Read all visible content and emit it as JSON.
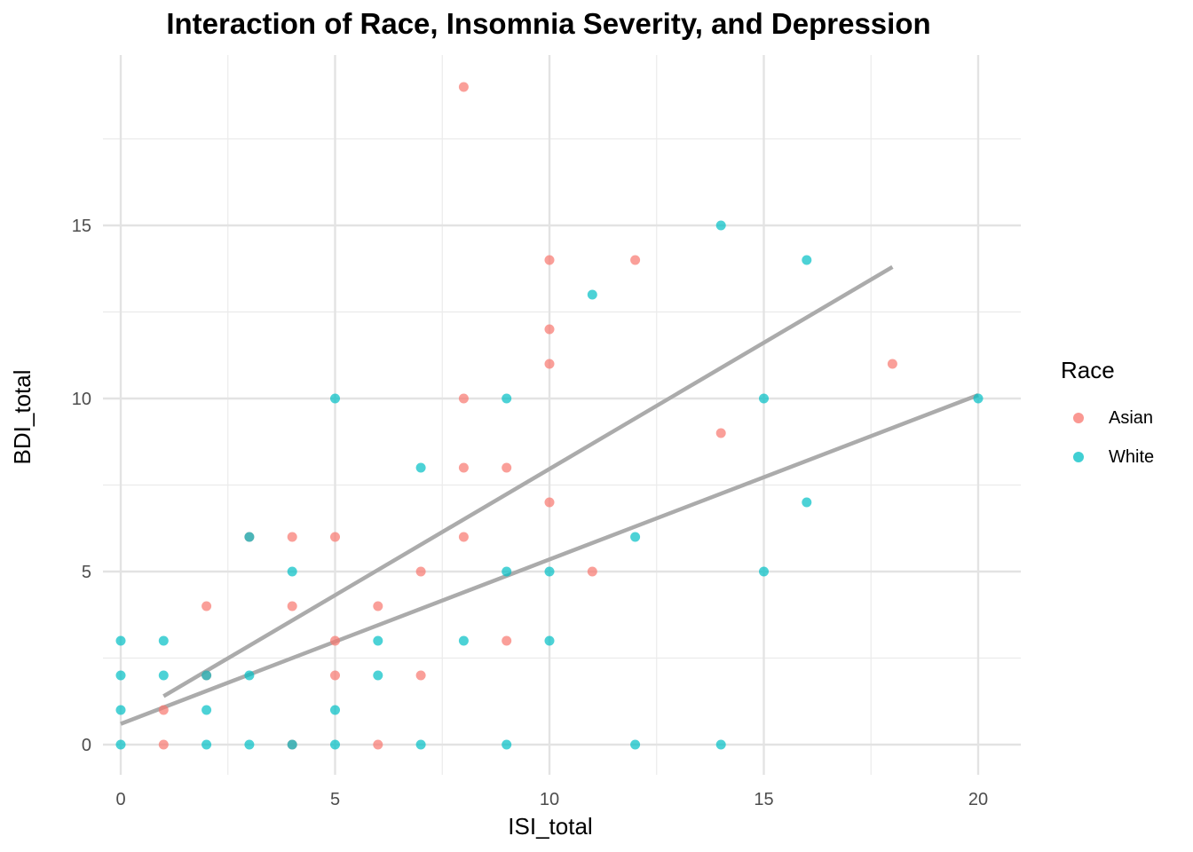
{
  "chart_data": {
    "type": "scatter",
    "title": "Interaction of Race, Insomnia Severity, and Depression",
    "xlabel": "ISI_total",
    "ylabel": "BDI_total",
    "xlim": [
      -0.8,
      21
    ],
    "ylim": [
      -0.8,
      19.5
    ],
    "xticks": [
      0,
      5,
      10,
      15,
      20
    ],
    "yticks": [
      0,
      5,
      10,
      15
    ],
    "grid": true,
    "legend": {
      "title": "Race",
      "placement": "right"
    },
    "series": [
      {
        "name": "Asian",
        "color": "#F8766D",
        "x": [
          8,
          10,
          12,
          10,
          10,
          18,
          8,
          14,
          8,
          9,
          10,
          3,
          4,
          5,
          8,
          7,
          11,
          2,
          4,
          6,
          5,
          9,
          2,
          7,
          5,
          1,
          1,
          4,
          6
        ],
        "y": [
          19,
          14,
          14,
          12,
          11,
          11,
          10,
          9,
          8,
          8,
          7,
          6,
          6,
          6,
          6,
          5,
          5,
          4,
          4,
          4,
          3,
          3,
          2,
          2,
          2,
          1,
          0,
          0,
          0
        ],
        "fit": {
          "x": [
            1,
            18
          ],
          "y": [
            1.4,
            13.8
          ]
        }
      },
      {
        "name": "White",
        "color": "#00BFC4",
        "x": [
          14,
          16,
          11,
          5,
          9,
          15,
          20,
          7,
          16,
          3,
          12,
          4,
          9,
          10,
          15,
          0,
          1,
          6,
          8,
          10,
          0,
          1,
          2,
          3,
          6,
          0,
          2,
          5,
          0,
          2,
          3,
          4,
          5,
          7,
          9,
          12,
          14
        ],
        "y": [
          15,
          14,
          13,
          10,
          10,
          10,
          10,
          8,
          7,
          6,
          6,
          5,
          5,
          5,
          5,
          3,
          3,
          3,
          3,
          3,
          2,
          2,
          2,
          2,
          2,
          1,
          1,
          1,
          0,
          0,
          0,
          0,
          0,
          0,
          0,
          0,
          0
        ],
        "fit": {
          "x": [
            0,
            20
          ],
          "y": [
            0.6,
            10.1
          ]
        }
      }
    ]
  }
}
